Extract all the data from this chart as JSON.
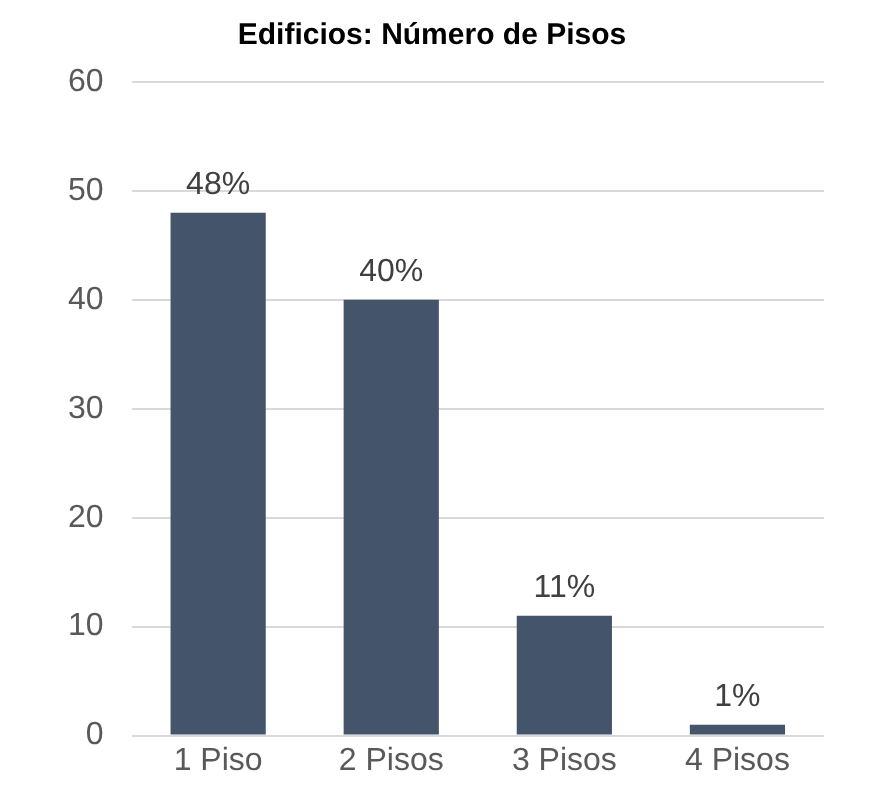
{
  "chart_data": {
    "type": "bar",
    "title": "Edificios: Número de Pisos",
    "categories": [
      "1 Piso",
      "2 Pisos",
      "3 Pisos",
      "4 Pisos"
    ],
    "values": [
      48,
      40,
      11,
      1
    ],
    "value_labels": [
      "48%",
      "40%",
      "11%",
      "1%"
    ],
    "color": "#44546a",
    "ylim": [
      0,
      60
    ],
    "yticks": [
      0,
      10,
      20,
      30,
      40,
      50,
      60
    ],
    "grid": "y",
    "legend": false
  }
}
